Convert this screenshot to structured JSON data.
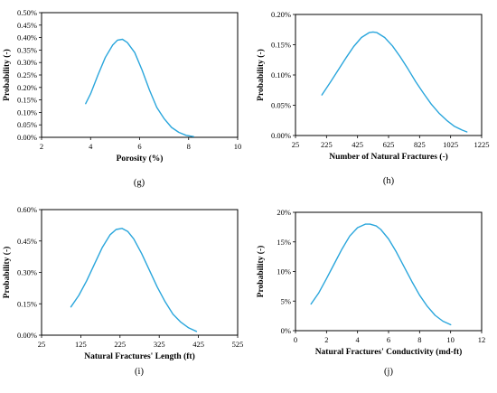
{
  "chart_data": [
    {
      "type": "line",
      "panel_label": "(g)",
      "xlabel": "Porosity (%)",
      "ylabel": "Probability (-)",
      "xlim": [
        2,
        10
      ],
      "ylim": [
        0,
        0.005
      ],
      "x_ticks": [
        2,
        4,
        6,
        8,
        10
      ],
      "x_tick_labels": [
        "2",
        "4",
        "6",
        "8",
        "10"
      ],
      "y_ticks": [
        0,
        0.0005,
        0.001,
        0.0015,
        0.002,
        0.0025,
        0.003,
        0.0035,
        0.004,
        0.0045,
        0.005
      ],
      "y_tick_labels": [
        "0.00%",
        "0.05%",
        "0.10%",
        "0.15%",
        "0.20%",
        "0.25%",
        "0.30%",
        "0.35%",
        "0.40%",
        "0.45%",
        "0.50%"
      ],
      "color": "#2aa6dc",
      "series": [
        {
          "x": [
            3.8,
            4.0,
            4.3,
            4.6,
            4.9,
            5.1,
            5.3,
            5.5,
            5.8,
            6.1,
            6.4,
            6.7,
            7.0,
            7.3,
            7.6,
            7.9,
            8.2
          ],
          "y": [
            0.00135,
            0.00175,
            0.0025,
            0.0032,
            0.0037,
            0.0039,
            0.00393,
            0.0038,
            0.0034,
            0.0027,
            0.0019,
            0.0012,
            0.00075,
            0.0004,
            0.0002,
            8e-05,
            3e-05
          ]
        }
      ]
    },
    {
      "type": "line",
      "panel_label": "(h)",
      "xlabel": "Number of Natural Fractures (-)",
      "ylabel": "Probability (-)",
      "xlim": [
        25,
        1225
      ],
      "ylim": [
        0,
        0.002
      ],
      "x_ticks": [
        25,
        225,
        425,
        625,
        825,
        1025,
        1225
      ],
      "x_tick_labels": [
        "25",
        "225",
        "425",
        "625",
        "825",
        "1025",
        "1225"
      ],
      "y_ticks": [
        0,
        0.0005,
        0.001,
        0.0015,
        0.002
      ],
      "y_tick_labels": [
        "0.00%",
        "0.05%",
        "0.10%",
        "0.15%",
        "0.20%"
      ],
      "color": "#2aa6dc",
      "series": [
        {
          "x": [
            195,
            250,
            300,
            350,
            400,
            450,
            500,
            525,
            550,
            600,
            650,
            700,
            750,
            800,
            850,
            900,
            950,
            1000,
            1050,
            1100,
            1130
          ],
          "y": [
            0.00067,
            0.00088,
            0.00108,
            0.00128,
            0.00147,
            0.00162,
            0.0017,
            0.00171,
            0.0017,
            0.00162,
            0.00148,
            0.0013,
            0.0011,
            0.00089,
            0.0007,
            0.00052,
            0.00037,
            0.00025,
            0.00015,
            9e-05,
            6e-05
          ]
        }
      ]
    },
    {
      "type": "line",
      "panel_label": "(i)",
      "xlabel": "Natural Fractures' Length (ft)",
      "ylabel": "Probability (-)",
      "xlim": [
        25,
        525
      ],
      "ylim": [
        0,
        0.006
      ],
      "x_ticks": [
        25,
        125,
        225,
        325,
        425,
        525
      ],
      "x_tick_labels": [
        "25",
        "125",
        "225",
        "325",
        "425",
        "525"
      ],
      "y_ticks": [
        0,
        0.0015,
        0.003,
        0.0045,
        0.006
      ],
      "y_tick_labels": [
        "0.00%",
        "0.15%",
        "0.30%",
        "0.45%",
        "0.60%"
      ],
      "color": "#2aa6dc",
      "series": [
        {
          "x": [
            100,
            120,
            140,
            160,
            180,
            200,
            215,
            230,
            245,
            260,
            280,
            300,
            320,
            340,
            360,
            380,
            400,
            420
          ],
          "y": [
            0.00135,
            0.0019,
            0.0026,
            0.0034,
            0.0042,
            0.0048,
            0.00505,
            0.0051,
            0.00495,
            0.0046,
            0.0039,
            0.0031,
            0.0023,
            0.0016,
            0.001,
            0.00062,
            0.00035,
            0.00018
          ]
        }
      ]
    },
    {
      "type": "line",
      "panel_label": "(j)",
      "xlabel": "Natural Fractures' Conductivity (md-ft)",
      "ylabel": "Probability (-)",
      "xlim": [
        0,
        12
      ],
      "ylim": [
        0,
        0.2
      ],
      "x_ticks": [
        0,
        2,
        4,
        6,
        8,
        10,
        12
      ],
      "x_tick_labels": [
        "0",
        "2",
        "4",
        "6",
        "8",
        "10",
        "12"
      ],
      "y_ticks": [
        0,
        0.05,
        0.1,
        0.15,
        0.2
      ],
      "y_tick_labels": [
        "0%",
        "5%",
        "10%",
        "15%",
        "20%"
      ],
      "color": "#2aa6dc",
      "series": [
        {
          "x": [
            1.0,
            1.5,
            2.0,
            2.5,
            3.0,
            3.5,
            4.0,
            4.5,
            4.8,
            5.2,
            5.5,
            6.0,
            6.5,
            7.0,
            7.5,
            8.0,
            8.5,
            9.0,
            9.5,
            10.0
          ],
          "y": [
            0.045,
            0.064,
            0.088,
            0.113,
            0.138,
            0.16,
            0.174,
            0.18,
            0.18,
            0.177,
            0.171,
            0.155,
            0.133,
            0.108,
            0.083,
            0.06,
            0.041,
            0.026,
            0.016,
            0.01
          ]
        }
      ]
    }
  ]
}
